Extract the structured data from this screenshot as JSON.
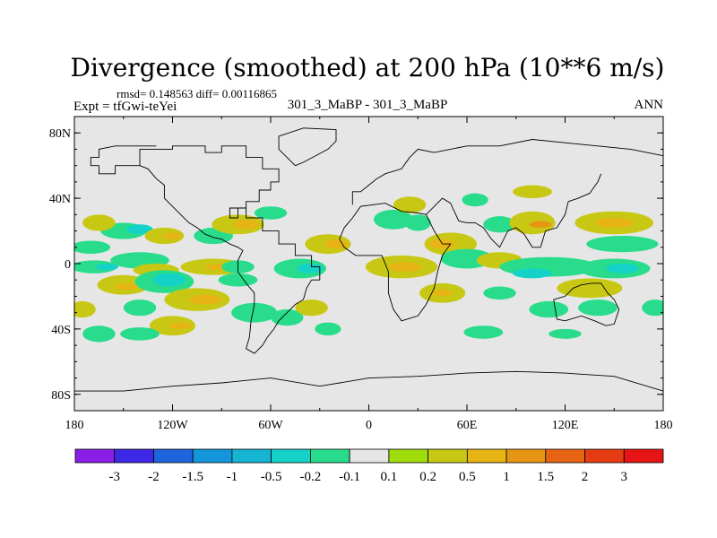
{
  "chart_data": {
    "type": "heatmap",
    "title": "Divergence (smoothed) at 200 hPa (10**6 m/s)",
    "stats": "rmsd= 0.148563 diff= 0.00116865",
    "left_label": "Expt = tfGwi-teYei",
    "center_label": "301_3_MaBP - 301_3_MaBP",
    "right_label": "ANN",
    "x_range": [
      -180,
      180
    ],
    "y_range": [
      -90,
      90
    ],
    "y_ticks": [
      {
        "value": 80,
        "label": "80N"
      },
      {
        "value": 40,
        "label": "40N"
      },
      {
        "value": 0,
        "label": "0"
      },
      {
        "value": -40,
        "label": "40S"
      },
      {
        "value": -80,
        "label": "80S"
      }
    ],
    "x_ticks": [
      {
        "value": -180,
        "label": "180"
      },
      {
        "value": -120,
        "label": "120W"
      },
      {
        "value": -60,
        "label": "60W"
      },
      {
        "value": 0,
        "label": "0"
      },
      {
        "value": 60,
        "label": "60E"
      },
      {
        "value": 120,
        "label": "120E"
      },
      {
        "value": 180,
        "label": "180"
      }
    ],
    "colorbar": {
      "colors": [
        "#8a1ee6",
        "#3c28e6",
        "#1e64dc",
        "#1496dc",
        "#14b4d2",
        "#14d2c8",
        "#28dc8c",
        "#e6e6e6",
        "#a0dc0a",
        "#c8c814",
        "#e6b414",
        "#e69614",
        "#e66414",
        "#e63c14",
        "#e61414"
      ],
      "labels": [
        "-3",
        "-2",
        "-1.5",
        "-1",
        "-0.5",
        "-0.2",
        "-0.1",
        "0.1",
        "0.2",
        "0.5",
        "1",
        "1.5",
        "2",
        "3"
      ]
    },
    "background_color": "#e6e6e6",
    "features": [
      {
        "lon": -170,
        "lat": 10,
        "rx": 12,
        "ry": 4,
        "level": "neg1"
      },
      {
        "lon": -150,
        "lat": 20,
        "rx": 14,
        "ry": 5,
        "level": "neg1"
      },
      {
        "lon": -140,
        "lat": 21,
        "rx": 8,
        "ry": 3,
        "level": "neg2"
      },
      {
        "lon": -165,
        "lat": 25,
        "rx": 10,
        "ry": 5,
        "level": "pos1"
      },
      {
        "lon": -125,
        "lat": 17,
        "rx": 12,
        "ry": 5,
        "level": "pos1"
      },
      {
        "lon": -120,
        "lat": 17,
        "rx": 6,
        "ry": 2,
        "level": "pos2"
      },
      {
        "lon": -95,
        "lat": 17,
        "rx": 12,
        "ry": 5,
        "level": "neg1"
      },
      {
        "lon": -80,
        "lat": 24,
        "rx": 16,
        "ry": 6,
        "level": "pos1"
      },
      {
        "lon": -75,
        "lat": 24,
        "rx": 8,
        "ry": 3,
        "level": "pos2"
      },
      {
        "lon": -60,
        "lat": 31,
        "rx": 10,
        "ry": 4,
        "level": "neg1"
      },
      {
        "lon": -168,
        "lat": -2,
        "rx": 14,
        "ry": 4,
        "level": "neg1"
      },
      {
        "lon": -160,
        "lat": -2,
        "rx": 7,
        "ry": 2,
        "level": "neg2"
      },
      {
        "lon": -140,
        "lat": 2,
        "rx": 18,
        "ry": 5,
        "level": "neg1"
      },
      {
        "lon": -130,
        "lat": -4,
        "rx": 14,
        "ry": 4,
        "level": "pos1"
      },
      {
        "lon": -95,
        "lat": -2,
        "rx": 20,
        "ry": 5,
        "level": "pos1"
      },
      {
        "lon": -90,
        "lat": -2,
        "rx": 10,
        "ry": 2,
        "level": "pos2"
      },
      {
        "lon": -80,
        "lat": -2,
        "rx": 10,
        "ry": 4,
        "level": "neg1"
      },
      {
        "lon": -25,
        "lat": 12,
        "rx": 14,
        "ry": 6,
        "level": "pos1"
      },
      {
        "lon": -20,
        "lat": 12,
        "rx": 7,
        "ry": 3,
        "level": "pos2"
      },
      {
        "lon": -42,
        "lat": -3,
        "rx": 16,
        "ry": 6,
        "level": "neg1"
      },
      {
        "lon": -36,
        "lat": -3,
        "rx": 8,
        "ry": 3,
        "level": "neg2"
      },
      {
        "lon": -150,
        "lat": -13,
        "rx": 16,
        "ry": 6,
        "level": "pos1"
      },
      {
        "lon": -148,
        "lat": -14,
        "rx": 7,
        "ry": 2,
        "level": "pos2"
      },
      {
        "lon": -125,
        "lat": -11,
        "rx": 18,
        "ry": 7,
        "level": "neg1"
      },
      {
        "lon": -122,
        "lat": -10,
        "rx": 10,
        "ry": 4,
        "level": "neg2"
      },
      {
        "lon": -105,
        "lat": -22,
        "rx": 20,
        "ry": 7,
        "level": "pos1"
      },
      {
        "lon": -100,
        "lat": -22,
        "rx": 10,
        "ry": 3,
        "level": "pos2"
      },
      {
        "lon": -140,
        "lat": -27,
        "rx": 10,
        "ry": 5,
        "level": "neg1"
      },
      {
        "lon": -80,
        "lat": -10,
        "rx": 12,
        "ry": 4,
        "level": "neg1"
      },
      {
        "lon": -70,
        "lat": -30,
        "rx": 14,
        "ry": 6,
        "level": "neg1"
      },
      {
        "lon": -175,
        "lat": -28,
        "rx": 8,
        "ry": 5,
        "level": "pos1"
      },
      {
        "lon": -165,
        "lat": -43,
        "rx": 10,
        "ry": 5,
        "level": "neg1"
      },
      {
        "lon": -120,
        "lat": -38,
        "rx": 14,
        "ry": 6,
        "level": "pos1"
      },
      {
        "lon": -115,
        "lat": -38,
        "rx": 7,
        "ry": 2,
        "level": "pos2"
      },
      {
        "lon": -140,
        "lat": -43,
        "rx": 12,
        "ry": 4,
        "level": "neg1"
      },
      {
        "lon": -50,
        "lat": -33,
        "rx": 10,
        "ry": 5,
        "level": "neg1"
      },
      {
        "lon": -35,
        "lat": -27,
        "rx": 10,
        "ry": 5,
        "level": "pos1"
      },
      {
        "lon": -25,
        "lat": -40,
        "rx": 8,
        "ry": 4,
        "level": "neg1"
      },
      {
        "lon": 15,
        "lat": 27,
        "rx": 12,
        "ry": 6,
        "level": "neg1"
      },
      {
        "lon": 25,
        "lat": 36,
        "rx": 10,
        "ry": 5,
        "level": "pos1"
      },
      {
        "lon": 30,
        "lat": 25,
        "rx": 8,
        "ry": 5,
        "level": "neg1"
      },
      {
        "lon": 65,
        "lat": 39,
        "rx": 8,
        "ry": 4,
        "level": "neg1"
      },
      {
        "lon": 80,
        "lat": 24,
        "rx": 10,
        "ry": 5,
        "level": "neg1"
      },
      {
        "lon": 20,
        "lat": -2,
        "rx": 22,
        "ry": 7,
        "level": "pos1"
      },
      {
        "lon": 22,
        "lat": -2,
        "rx": 10,
        "ry": 3,
        "level": "pos2"
      },
      {
        "lon": 50,
        "lat": 12,
        "rx": 16,
        "ry": 7,
        "level": "pos1"
      },
      {
        "lon": 45,
        "lat": 12,
        "rx": 8,
        "ry": 3,
        "level": "pos2"
      },
      {
        "lon": 45,
        "lat": -18,
        "rx": 14,
        "ry": 6,
        "level": "pos1"
      },
      {
        "lon": 45,
        "lat": -18,
        "rx": 6,
        "ry": 2,
        "level": "pos2"
      },
      {
        "lon": 60,
        "lat": 3,
        "rx": 16,
        "ry": 6,
        "level": "neg1"
      },
      {
        "lon": 80,
        "lat": 2,
        "rx": 14,
        "ry": 5,
        "level": "pos1"
      },
      {
        "lon": 100,
        "lat": 25,
        "rx": 14,
        "ry": 7,
        "level": "pos1"
      },
      {
        "lon": 105,
        "lat": 24,
        "rx": 7,
        "ry": 2,
        "level": "pos3"
      },
      {
        "lon": 100,
        "lat": 44,
        "rx": 12,
        "ry": 4,
        "level": "pos1"
      },
      {
        "lon": 150,
        "lat": 25,
        "rx": 24,
        "ry": 7,
        "level": "pos1"
      },
      {
        "lon": 150,
        "lat": 25,
        "rx": 12,
        "ry": 3,
        "level": "pos2"
      },
      {
        "lon": 155,
        "lat": 12,
        "rx": 22,
        "ry": 5,
        "level": "neg1"
      },
      {
        "lon": 110,
        "lat": -2,
        "rx": 30,
        "ry": 6,
        "level": "neg1"
      },
      {
        "lon": 100,
        "lat": -6,
        "rx": 12,
        "ry": 3,
        "level": "neg2"
      },
      {
        "lon": 150,
        "lat": -3,
        "rx": 22,
        "ry": 6,
        "level": "neg1"
      },
      {
        "lon": 155,
        "lat": -3,
        "rx": 10,
        "ry": 3,
        "level": "neg2"
      },
      {
        "lon": 135,
        "lat": -15,
        "rx": 20,
        "ry": 6,
        "level": "pos1"
      },
      {
        "lon": 80,
        "lat": -18,
        "rx": 10,
        "ry": 4,
        "level": "neg1"
      },
      {
        "lon": 110,
        "lat": -28,
        "rx": 12,
        "ry": 5,
        "level": "neg1"
      },
      {
        "lon": 140,
        "lat": -27,
        "rx": 12,
        "ry": 5,
        "level": "neg1"
      },
      {
        "lon": 175,
        "lat": -27,
        "rx": 8,
        "ry": 5,
        "level": "neg1"
      },
      {
        "lon": 70,
        "lat": -42,
        "rx": 12,
        "ry": 4,
        "level": "neg1"
      },
      {
        "lon": 120,
        "lat": -43,
        "rx": 10,
        "ry": 3,
        "level": "neg1"
      }
    ],
    "coastlines": [
      [
        [
          -35,
          -10
        ],
        [
          -30,
          -10
        ],
        [
          -30,
          -2
        ],
        [
          -35,
          -2
        ],
        [
          -35,
          5
        ],
        [
          -45,
          5
        ],
        [
          -45,
          12
        ],
        [
          -55,
          12
        ],
        [
          -55,
          20
        ],
        [
          -65,
          20
        ],
        [
          -65,
          28
        ],
        [
          -75,
          28
        ],
        [
          -75,
          34
        ],
        [
          -80,
          34
        ],
        [
          -80,
          28
        ],
        [
          -85,
          28
        ],
        [
          -85,
          34
        ],
        [
          -75,
          34
        ],
        [
          -75,
          38
        ],
        [
          -67,
          38
        ],
        [
          -67,
          45
        ],
        [
          -60,
          45
        ],
        [
          -60,
          50
        ],
        [
          -55,
          50
        ],
        [
          -55,
          58
        ],
        [
          -65,
          58
        ],
        [
          -65,
          65
        ],
        [
          -75,
          65
        ],
        [
          -75,
          72
        ],
        [
          -90,
          72
        ],
        [
          -90,
          68
        ],
        [
          -100,
          68
        ],
        [
          -100,
          72
        ],
        [
          -120,
          72
        ],
        [
          -120,
          70
        ],
        [
          -140,
          70
        ],
        [
          -140,
          60
        ],
        [
          -155,
          60
        ],
        [
          -155,
          55
        ],
        [
          -165,
          55
        ],
        [
          -165,
          60
        ],
        [
          -170,
          60
        ],
        [
          -170,
          65
        ],
        [
          -165,
          65
        ],
        [
          -165,
          70
        ],
        [
          -155,
          72
        ],
        [
          -130,
          72
        ]
      ],
      [
        [
          -35,
          -10
        ],
        [
          -38,
          -15
        ],
        [
          -40,
          -22
        ],
        [
          -45,
          -25
        ],
        [
          -50,
          -30
        ],
        [
          -55,
          -35
        ],
        [
          -58,
          -40
        ],
        [
          -62,
          -45
        ],
        [
          -65,
          -50
        ],
        [
          -70,
          -55
        ],
        [
          -75,
          -52
        ],
        [
          -73,
          -45
        ],
        [
          -72,
          -35
        ],
        [
          -70,
          -25
        ],
        [
          -70,
          -18
        ],
        [
          -75,
          -12
        ],
        [
          -80,
          -5
        ],
        [
          -80,
          2
        ],
        [
          -77,
          8
        ],
        [
          -80,
          10
        ],
        [
          -85,
          12
        ],
        [
          -90,
          15
        ],
        [
          -95,
          16
        ],
        [
          -100,
          18
        ],
        [
          -105,
          22
        ],
        [
          -110,
          25
        ],
        [
          -115,
          30
        ],
        [
          -120,
          35
        ],
        [
          -125,
          40
        ],
        [
          -125,
          48
        ],
        [
          -130,
          52
        ],
        [
          -135,
          58
        ],
        [
          -140,
          60
        ]
      ],
      [
        [
          -18,
          15
        ],
        [
          -15,
          22
        ],
        [
          -10,
          28
        ],
        [
          -5,
          35
        ],
        [
          10,
          37
        ],
        [
          20,
          32
        ],
        [
          30,
          31
        ],
        [
          35,
          30
        ],
        [
          40,
          20
        ],
        [
          45,
          12
        ],
        [
          50,
          12
        ],
        [
          45,
          5
        ],
        [
          42,
          -5
        ],
        [
          40,
          -15
        ],
        [
          35,
          -25
        ],
        [
          30,
          -32
        ],
        [
          20,
          -35
        ],
        [
          15,
          -28
        ],
        [
          12,
          -18
        ],
        [
          12,
          -5
        ],
        [
          8,
          5
        ],
        [
          0,
          5
        ],
        [
          -8,
          5
        ],
        [
          -15,
          10
        ],
        [
          -18,
          15
        ]
      ],
      [
        [
          -10,
          36
        ],
        [
          -10,
          44
        ],
        [
          -5,
          44
        ],
        [
          0,
          48
        ],
        [
          5,
          52
        ],
        [
          10,
          55
        ],
        [
          20,
          58
        ],
        [
          25,
          65
        ],
        [
          30,
          70
        ],
        [
          40,
          68
        ],
        [
          50,
          70
        ],
        [
          60,
          72
        ],
        [
          80,
          72
        ],
        [
          100,
          76
        ],
        [
          120,
          74
        ],
        [
          140,
          72
        ],
        [
          160,
          70
        ],
        [
          180,
          66
        ]
      ],
      [
        [
          35,
          30
        ],
        [
          40,
          35
        ],
        [
          45,
          40
        ],
        [
          50,
          37
        ],
        [
          55,
          26
        ],
        [
          60,
          25
        ],
        [
          65,
          25
        ],
        [
          70,
          22
        ],
        [
          75,
          15
        ],
        [
          80,
          10
        ],
        [
          85,
          20
        ],
        [
          90,
          22
        ],
        [
          95,
          18
        ],
        [
          100,
          10
        ],
        [
          105,
          10
        ],
        [
          108,
          20
        ],
        [
          115,
          22
        ],
        [
          120,
          30
        ],
        [
          122,
          38
        ],
        [
          128,
          40
        ],
        [
          135,
          43
        ],
        [
          140,
          50
        ],
        [
          142,
          55
        ]
      ],
      [
        [
          113,
          -22
        ],
        [
          115,
          -34
        ],
        [
          120,
          -35
        ],
        [
          130,
          -32
        ],
        [
          138,
          -35
        ],
        [
          145,
          -38
        ],
        [
          150,
          -37
        ],
        [
          153,
          -28
        ],
        [
          150,
          -22
        ],
        [
          146,
          -18
        ],
        [
          142,
          -12
        ],
        [
          136,
          -12
        ],
        [
          130,
          -13
        ],
        [
          125,
          -15
        ],
        [
          120,
          -20
        ],
        [
          113,
          -22
        ]
      ],
      [
        [
          -180,
          -78
        ],
        [
          -150,
          -78
        ],
        [
          -120,
          -75
        ],
        [
          -90,
          -73
        ],
        [
          -60,
          -70
        ],
        [
          -30,
          -75
        ],
        [
          0,
          -70
        ],
        [
          30,
          -69
        ],
        [
          60,
          -67
        ],
        [
          90,
          -66
        ],
        [
          120,
          -67
        ],
        [
          150,
          -69
        ],
        [
          180,
          -78
        ]
      ],
      [
        [
          -45,
          60
        ],
        [
          -50,
          65
        ],
        [
          -55,
          70
        ],
        [
          -55,
          78
        ],
        [
          -40,
          83
        ],
        [
          -20,
          82
        ],
        [
          -20,
          75
        ],
        [
          -25,
          70
        ],
        [
          -40,
          62
        ],
        [
          -45,
          60
        ]
      ]
    ]
  }
}
